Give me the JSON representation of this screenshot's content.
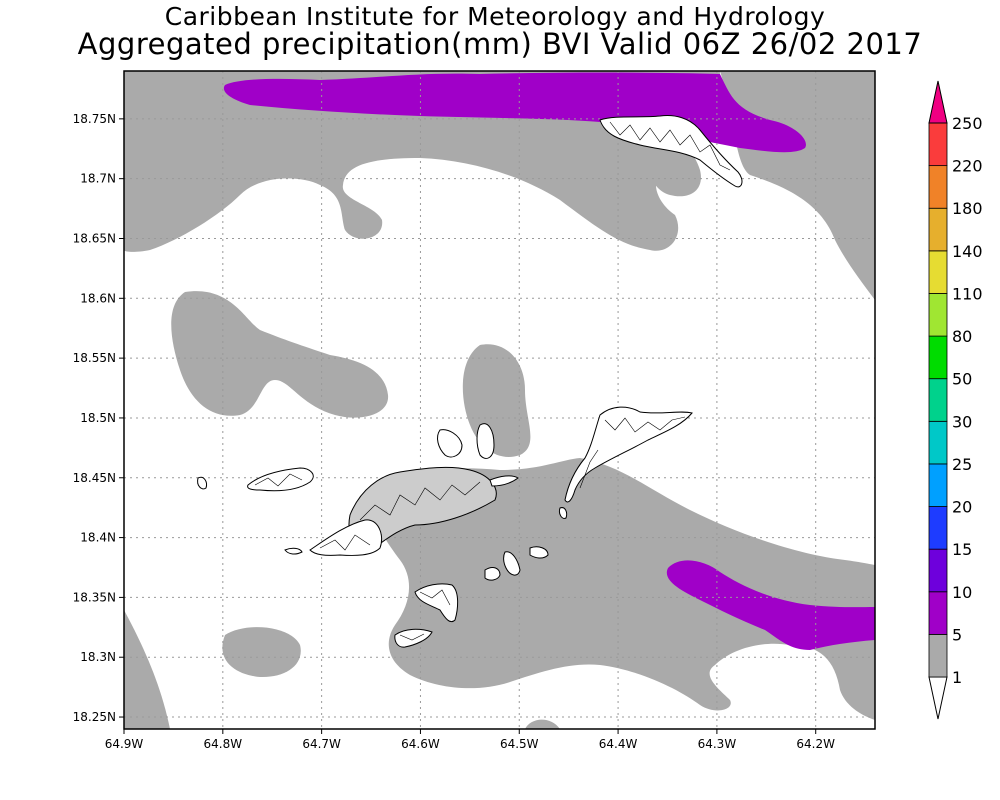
{
  "header": {
    "line1": "Caribbean Institute for Meteorology and Hydrology",
    "line2": "Aggregated precipitation(mm) BVI Valid 06Z 26/02 2017"
  },
  "map": {
    "lon_range": [
      -64.9,
      -64.14
    ],
    "lat_range": [
      18.24,
      18.79
    ],
    "lon_labels": [
      "64.9W",
      "64.8W",
      "64.7W",
      "64.6W",
      "64.5W",
      "64.4W",
      "64.3W",
      "64.2W"
    ],
    "lon_values": [
      -64.9,
      -64.8,
      -64.7,
      -64.6,
      -64.5,
      -64.4,
      -64.3,
      -64.2
    ],
    "lat_labels": [
      "18.75N",
      "18.7N",
      "18.65N",
      "18.6N",
      "18.55N",
      "18.5N",
      "18.45N",
      "18.4N",
      "18.35N",
      "18.3N",
      "18.25N"
    ],
    "lat_values": [
      18.75,
      18.7,
      18.65,
      18.6,
      18.55,
      18.5,
      18.45,
      18.4,
      18.35,
      18.3,
      18.25
    ],
    "colors": {
      "band_1_5": "#aaaaaa",
      "band_5_10": "#a000c8",
      "land_outline": "#000000",
      "grid": "#999999"
    }
  },
  "legend": {
    "labels": [
      "1",
      "5",
      "10",
      "15",
      "20",
      "25",
      "30",
      "50",
      "80",
      "110",
      "140",
      "180",
      "220",
      "250"
    ],
    "colors": [
      "#ffffff",
      "#aaaaaa",
      "#a000c8",
      "#6e00dc",
      "#1e3cff",
      "#00a0ff",
      "#00c8c8",
      "#00d28c",
      "#00dc00",
      "#a0e632",
      "#e6dc32",
      "#e6af2d",
      "#f08228",
      "#fa3c3c",
      "#f00082"
    ]
  }
}
